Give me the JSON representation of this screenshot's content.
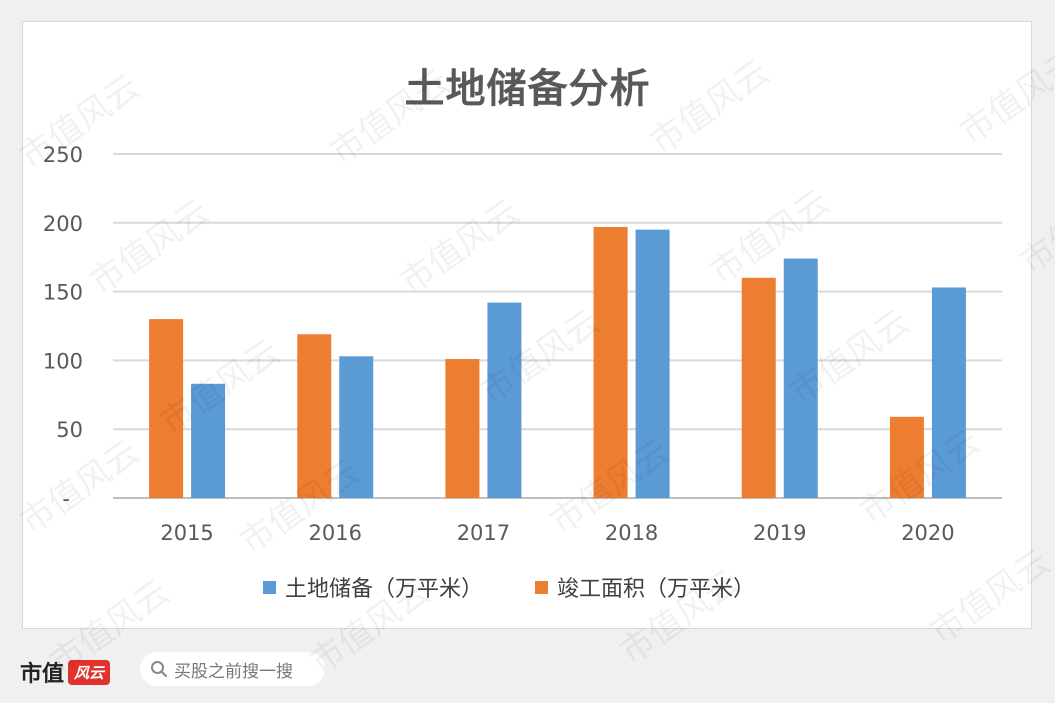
{
  "chart_data": {
    "type": "bar",
    "title": "土地储备分析",
    "categories": [
      "2015",
      "2016",
      "2017",
      "2018",
      "2019",
      "2020"
    ],
    "series": [
      {
        "name": "土地储备（万平米）",
        "color": "#5b9bd5",
        "values": [
          83,
          103,
          142,
          195,
          174,
          153
        ]
      },
      {
        "name": "竣工面积（万平米）",
        "color": "#ed7d31",
        "values": [
          130,
          119,
          101,
          197,
          160,
          59
        ]
      }
    ],
    "y_ticks": [
      "-",
      "50",
      "100",
      "150",
      "200",
      "250"
    ],
    "ylim": [
      0,
      250
    ],
    "grid": true,
    "legend_position": "bottom"
  },
  "footer": {
    "brand": "市值",
    "brand_mark": "风云",
    "search_placeholder": "买股之前搜一搜"
  },
  "watermark_text": "市值风云"
}
